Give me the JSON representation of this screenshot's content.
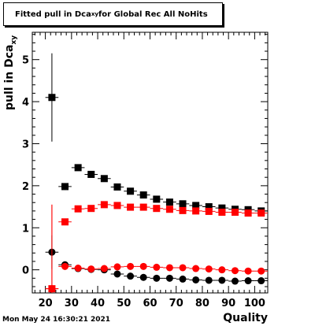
{
  "title": {
    "prefix": "Fitted pull in Dca",
    "sub": "xy",
    "suffix": " for Global Rec All NoHits"
  },
  "timestamp": "Mon May 24 16:30:21 2021",
  "chart_data": {
    "type": "scatter",
    "xlabel": "Quality",
    "ylabel": {
      "text": "pull in Dca",
      "sub": "xy"
    },
    "xlim": [
      15,
      105
    ],
    "ylim": [
      -0.55,
      5.65
    ],
    "xticks": [
      20,
      30,
      40,
      50,
      60,
      70,
      80,
      90,
      100
    ],
    "yticks": [
      0,
      1,
      2,
      3,
      4,
      5
    ],
    "series": [
      {
        "color": "#000000",
        "marker": "square",
        "x_err": 2.5,
        "x": [
          22.5,
          27.5,
          32.5,
          37.5,
          42.5,
          47.5,
          52.5,
          57.5,
          62.5,
          67.5,
          72.5,
          77.5,
          82.5,
          87.5,
          92.5,
          97.5,
          102.5
        ],
        "y": [
          4.1,
          1.98,
          2.43,
          2.27,
          2.17,
          1.97,
          1.87,
          1.78,
          1.68,
          1.61,
          1.57,
          1.53,
          1.5,
          1.47,
          1.44,
          1.43,
          1.4
        ],
        "yerr": [
          1.05,
          0.08,
          0.06,
          0.05,
          0.04,
          0.03,
          0.03,
          0.03,
          0.03,
          0.02,
          0.02,
          0.02,
          0.02,
          0.02,
          0.02,
          0.02,
          0.02
        ]
      },
      {
        "color": "#ff0000",
        "marker": "square",
        "x_err": 2.5,
        "x": [
          22.5,
          27.5,
          32.5,
          37.5,
          42.5,
          47.5,
          52.5,
          57.5,
          62.5,
          67.5,
          72.5,
          77.5,
          82.5,
          87.5,
          92.5,
          97.5,
          102.5
        ],
        "y": [
          -0.45,
          1.14,
          1.45,
          1.46,
          1.55,
          1.53,
          1.49,
          1.49,
          1.46,
          1.44,
          1.41,
          1.4,
          1.39,
          1.37,
          1.37,
          1.35,
          1.35
        ],
        "yerr": [
          2.0,
          0.08,
          0.05,
          0.04,
          0.04,
          0.03,
          0.03,
          0.03,
          0.03,
          0.02,
          0.02,
          0.02,
          0.02,
          0.02,
          0.02,
          0.02,
          0.02
        ]
      },
      {
        "color": "#000000",
        "marker": "circle",
        "x_err": 2.5,
        "x": [
          22.5,
          27.5,
          32.5,
          37.5,
          42.5,
          47.5,
          52.5,
          57.5,
          62.5,
          67.5,
          72.5,
          77.5,
          82.5,
          87.5,
          92.5,
          97.5,
          102.5
        ],
        "y": [
          0.42,
          0.12,
          0.03,
          0.01,
          0.0,
          -0.1,
          -0.15,
          -0.18,
          -0.2,
          -0.2,
          -0.22,
          -0.24,
          -0.25,
          -0.25,
          -0.27,
          -0.26,
          -0.26
        ],
        "yerr": [
          0.4,
          0.08,
          0.05,
          0.04,
          0.03,
          0.03,
          0.03,
          0.02,
          0.02,
          0.02,
          0.02,
          0.02,
          0.02,
          0.02,
          0.02,
          0.02,
          0.02
        ]
      },
      {
        "color": "#ff0000",
        "marker": "circle",
        "x_err": 2.5,
        "x": [
          22.5,
          27.5,
          32.5,
          37.5,
          42.5,
          47.5,
          52.5,
          57.5,
          62.5,
          67.5,
          72.5,
          77.5,
          82.5,
          87.5,
          92.5,
          97.5,
          102.5
        ],
        "y": [
          -0.45,
          0.08,
          0.04,
          0.02,
          0.03,
          0.07,
          0.08,
          0.08,
          0.06,
          0.05,
          0.05,
          0.03,
          0.02,
          0.0,
          -0.02,
          -0.03,
          -0.03
        ],
        "yerr": [
          2.0,
          0.08,
          0.05,
          0.04,
          0.03,
          0.03,
          0.03,
          0.02,
          0.02,
          0.02,
          0.02,
          0.02,
          0.02,
          0.02,
          0.02,
          0.02,
          0.02
        ]
      }
    ]
  }
}
